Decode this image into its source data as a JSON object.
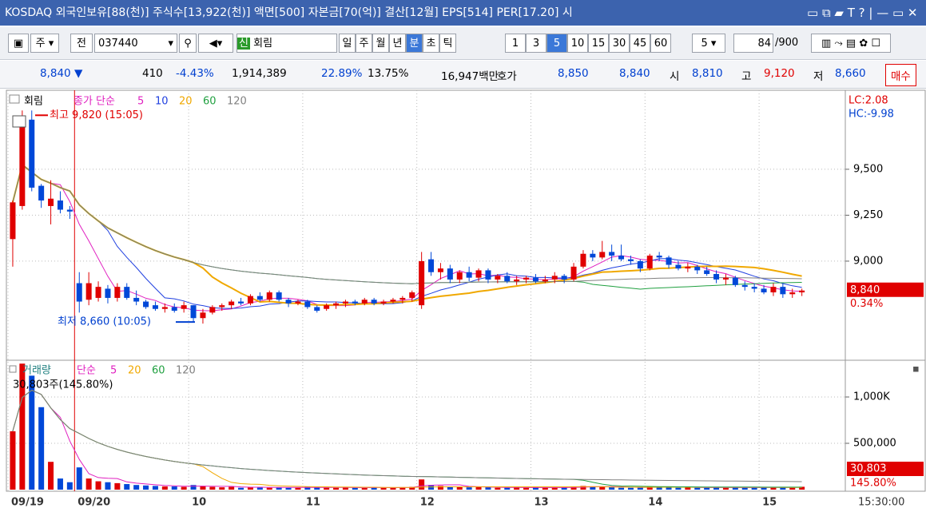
{
  "title_bar": "KOSDAQ 외국인보유[88(천)] 주식수[13,922(천)] 액면[500] 자본금[70(억)] 결산[12월] EPS[514] PER[17.20] 시",
  "toolbar": {
    "mode": "주",
    "prev": "전",
    "code": "037440",
    "badge": "신",
    "name": "회림",
    "periods": [
      "일",
      "주",
      "월",
      "년",
      "분",
      "초",
      "틱"
    ],
    "intervals": [
      "1",
      "3",
      "5",
      "10",
      "15",
      "30",
      "45",
      "60"
    ],
    "unit": "5",
    "count": "84",
    "total": "/900"
  },
  "info_row": {
    "price": "8,840 ▼",
    "change": "410",
    "change_rate": "-4.43%",
    "volume": "1,914,389",
    "turnover": "22.89%",
    "foreign": "13.75%",
    "amount": "16,947백만",
    "quote_label": "호가",
    "ask": "8,850",
    "bid": "8,840",
    "open_label": "시",
    "open": "8,810",
    "high_label": "고",
    "high": "9,120",
    "low_label": "저",
    "low": "8,660",
    "buy": "매수"
  },
  "time_label": "15:30:00",
  "chart_data": [
    {
      "type": "candlestick",
      "legend_name": "회림",
      "ma_label": "종가 단순",
      "ma_periods": [
        5,
        10,
        20,
        60,
        120
      ],
      "ma_colors": [
        "#e020c0",
        "#2040e0",
        "#f0a800",
        "#20a040",
        "#808080"
      ],
      "up_color": "#e00000",
      "down_color": "#0048d8",
      "categories": [
        "09/19",
        null,
        null,
        null,
        null,
        null,
        null,
        "09/20",
        null,
        null,
        null,
        null,
        null,
        null,
        null,
        null,
        null,
        null,
        null,
        "10",
        null,
        null,
        null,
        null,
        null,
        null,
        null,
        null,
        null,
        null,
        null,
        "11",
        null,
        null,
        null,
        null,
        null,
        null,
        null,
        null,
        null,
        null,
        null,
        "12",
        null,
        null,
        null,
        null,
        null,
        null,
        null,
        null,
        null,
        null,
        null,
        "13",
        null,
        null,
        null,
        null,
        null,
        null,
        null,
        null,
        null,
        null,
        null,
        "14",
        null,
        null,
        null,
        null,
        null,
        null,
        null,
        null,
        null,
        null,
        null,
        "15",
        null,
        null,
        null,
        null
      ],
      "open": [
        9120,
        9300,
        9770,
        9410,
        9300,
        9330,
        9280,
        8880,
        8790,
        8800,
        8850,
        8800,
        8860,
        8800,
        8780,
        8760,
        8740,
        8750,
        8740,
        8760,
        8690,
        8720,
        8750,
        8760,
        8780,
        8770,
        8810,
        8790,
        8830,
        8790,
        8770,
        8780,
        8750,
        8740,
        8760,
        8770,
        8780,
        8770,
        8790,
        8770,
        8780,
        8790,
        8800,
        8760,
        9010,
        8940,
        8960,
        8900,
        8940,
        8910,
        8950,
        8900,
        8920,
        8890,
        8900,
        8910,
        8890,
        8900,
        8920,
        8900,
        8970,
        9040,
        9020,
        9050,
        9030,
        9010,
        9000,
        8960,
        9030,
        9020,
        8980,
        8960,
        8970,
        8950,
        8930,
        8900,
        8910,
        8870,
        8860,
        8850,
        8830,
        8860,
        8820,
        8830
      ],
      "high": [
        9330,
        9820,
        9820,
        9420,
        9440,
        9380,
        9300,
        8940,
        8940,
        8890,
        8870,
        8880,
        8880,
        8840,
        8790,
        8780,
        8770,
        8770,
        8780,
        8760,
        8740,
        8760,
        8770,
        8790,
        8800,
        8820,
        8830,
        8840,
        8840,
        8800,
        8790,
        8790,
        8760,
        8770,
        8780,
        8790,
        8790,
        8800,
        8800,
        8790,
        8800,
        8810,
        8840,
        9050,
        9050,
        8990,
        8980,
        8950,
        8970,
        8960,
        8960,
        8930,
        8940,
        8920,
        8920,
        8930,
        8920,
        8940,
        8930,
        8990,
        9060,
        9060,
        9110,
        9090,
        9090,
        9030,
        9010,
        9040,
        9050,
        9030,
        9000,
        8990,
        8980,
        8970,
        8950,
        8930,
        8920,
        8890,
        8880,
        8870,
        8880,
        8880,
        8850,
        8850
      ],
      "low": [
        8970,
        9280,
        9380,
        9290,
        9200,
        9260,
        9230,
        8720,
        8760,
        8780,
        8770,
        8780,
        8790,
        8760,
        8740,
        8730,
        8720,
        8720,
        8720,
        8670,
        8660,
        8710,
        8730,
        8740,
        8760,
        8760,
        8780,
        8780,
        8780,
        8750,
        8760,
        8740,
        8720,
        8730,
        8740,
        8750,
        8760,
        8760,
        8760,
        8760,
        8770,
        8770,
        8780,
        8740,
        8920,
        8900,
        8880,
        8880,
        8890,
        8890,
        8880,
        8880,
        8880,
        8870,
        8880,
        8880,
        8880,
        8880,
        8880,
        8890,
        8960,
        9000,
        9010,
        9000,
        9000,
        8980,
        8940,
        8950,
        9000,
        8960,
        8950,
        8940,
        8930,
        8920,
        8880,
        8870,
        8860,
        8840,
        8830,
        8820,
        8810,
        8800,
        8800,
        8810
      ],
      "close": [
        9320,
        9730,
        9400,
        9330,
        9340,
        9280,
        9270,
        8780,
        8880,
        8860,
        8800,
        8860,
        8800,
        8780,
        8750,
        8740,
        8750,
        8730,
        8760,
        8690,
        8720,
        8750,
        8760,
        8780,
        8770,
        8810,
        8790,
        8830,
        8790,
        8770,
        8780,
        8750,
        8730,
        8760,
        8770,
        8780,
        8770,
        8790,
        8770,
        8780,
        8790,
        8800,
        8830,
        9000,
        8940,
        8960,
        8900,
        8940,
        8910,
        8950,
        8900,
        8920,
        8890,
        8900,
        8910,
        8890,
        8900,
        8920,
        8900,
        8970,
        9040,
        9020,
        9050,
        9030,
        9010,
        9000,
        8960,
        9030,
        9020,
        8980,
        8960,
        8970,
        8950,
        8930,
        8900,
        8910,
        8870,
        8860,
        8850,
        8830,
        8860,
        8820,
        8830,
        8840
      ],
      "ylim": [
        8465,
        9930
      ],
      "yticks": [
        {
          "value": 9500,
          "label": "9,500"
        },
        {
          "value": 9250,
          "label": "9,250"
        },
        {
          "value": 9000,
          "label": "9,000"
        }
      ],
      "grid": true,
      "high_note": "최고 9,820 (15:05)",
      "low_note": "최저 8,660 (10:05)",
      "lc_label": "LC:2.08",
      "hc_label": "HC:-9.98",
      "last_label": "8,840",
      "change_label": "0.34%"
    },
    {
      "type": "bar",
      "legend_name": "거래량",
      "ma_label": "단순",
      "ma_periods": [
        5,
        20,
        60,
        120
      ],
      "ma_colors": [
        "#e020c0",
        "#f0a800",
        "#20a040",
        "#808080"
      ],
      "values": [
        630000,
        1360000,
        1230000,
        890000,
        300000,
        120000,
        80000,
        240000,
        120000,
        90000,
        80000,
        70000,
        60000,
        50000,
        45000,
        40000,
        35000,
        35000,
        30000,
        50000,
        40000,
        30000,
        25000,
        30000,
        20000,
        25000,
        30000,
        20000,
        25000,
        20000,
        20000,
        30000,
        25000,
        20000,
        20000,
        25000,
        20000,
        20000,
        25000,
        20000,
        20000,
        25000,
        30000,
        110000,
        50000,
        40000,
        30000,
        30000,
        25000,
        30000,
        25000,
        20000,
        20000,
        25000,
        20000,
        25000,
        20000,
        20000,
        25000,
        30000,
        40000,
        35000,
        30000,
        25000,
        20000,
        20000,
        25000,
        35000,
        30000,
        25000,
        20000,
        25000,
        20000,
        20000,
        25000,
        20000,
        25000,
        20000,
        20000,
        25000,
        30000,
        25000,
        20000,
        30803
      ],
      "ylim": [
        0,
        1388000
      ],
      "yticks": [
        {
          "value": 1000000,
          "label": "1,000K"
        },
        {
          "value": 500000,
          "label": "500,000"
        }
      ],
      "grid": true,
      "last_note": "30,803주(145.80%)",
      "last_label": "30,803",
      "ratio_label": "145.80%"
    }
  ]
}
